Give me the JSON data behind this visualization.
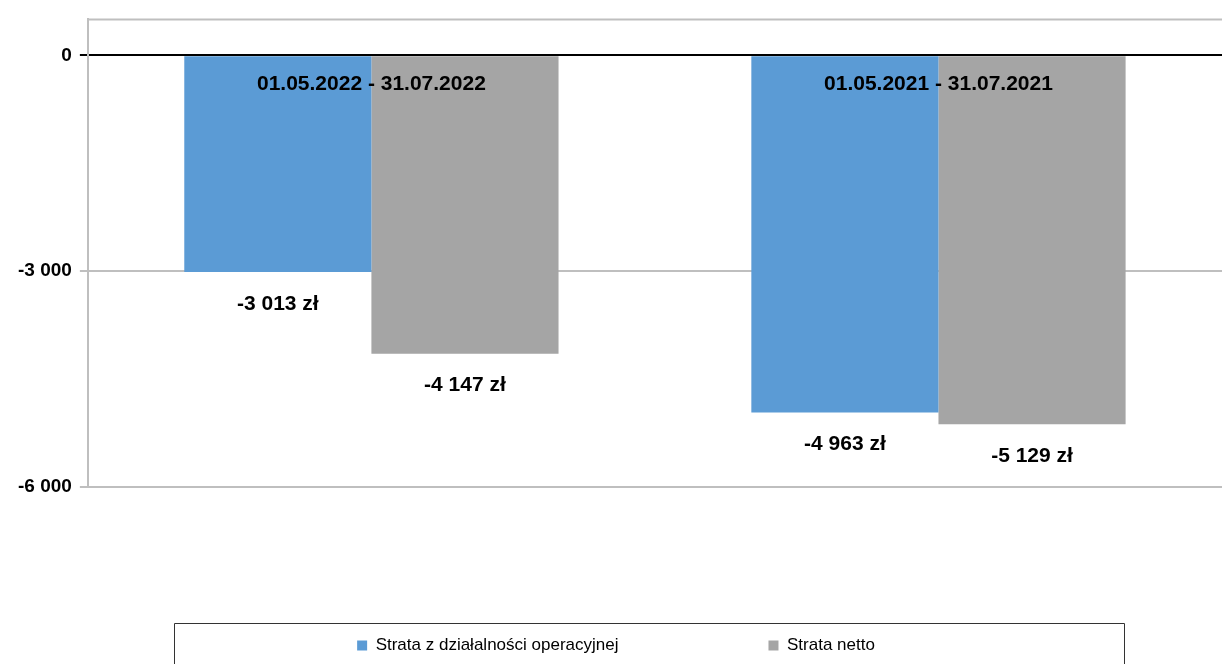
{
  "chart_data": {
    "type": "bar",
    "categories": [
      "01.05.2022 - 31.07.2022",
      "01.05.2021 - 31.07.2021"
    ],
    "series": [
      {
        "name": "Strata z działalności operacyjnej",
        "color": "#5b9bd5",
        "values": [
          -3013,
          -4963
        ],
        "value_labels": [
          "-3 013 zł",
          "-4 963 zł"
        ]
      },
      {
        "name": "Strata netto",
        "color": "#a5a5a5",
        "values": [
          -4147,
          -5129
        ],
        "value_labels": [
          "-4 147 zł",
          "-5 129 zł"
        ]
      }
    ],
    "ylim": [
      -6000,
      500
    ],
    "yticks": [
      {
        "value": -6000,
        "label": "-6 000"
      },
      {
        "value": -3000,
        "label": "-3 000"
      },
      0
    ],
    "grid": "y",
    "legend": "bottom"
  }
}
